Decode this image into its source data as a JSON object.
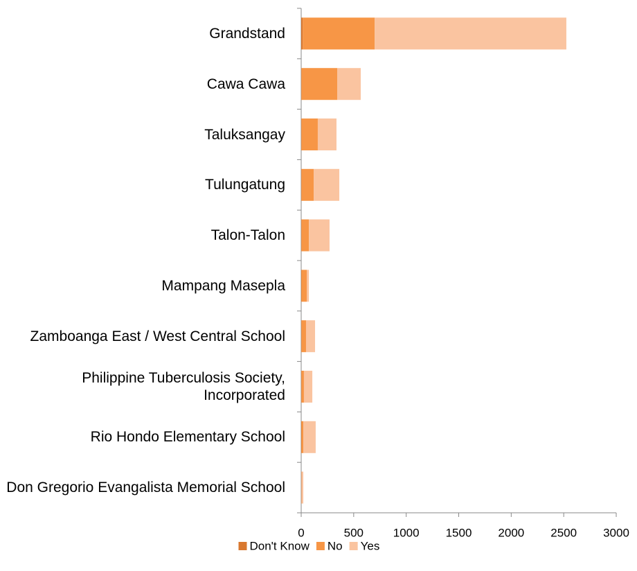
{
  "chart_data": {
    "type": "stacked_barh",
    "categories": [
      "Grandstand",
      "Cawa Cawa",
      "Taluksangay",
      "Tulungatung",
      "Talon-Talon",
      "Mampang Masepla",
      "Zamboanga East / West Central School",
      "Philippine Tuberculosis Society, Incorporated",
      "Rio Hondo Elementary School",
      "Don Gregorio Evangalista Memorial School"
    ],
    "series": [
      {
        "name": "Don't Know",
        "color": "#d9782f",
        "values": [
          15,
          5,
          5,
          5,
          5,
          3,
          5,
          5,
          3,
          2
        ]
      },
      {
        "name": "No",
        "color": "#f79646",
        "values": [
          685,
          338,
          153,
          114,
          68,
          50,
          41,
          21,
          17,
          3
        ]
      },
      {
        "name": "Yes",
        "color": "#fac4a0",
        "values": [
          1825,
          224,
          178,
          244,
          197,
          20,
          86,
          80,
          118,
          15
        ]
      }
    ],
    "xlim": [
      0,
      3000
    ],
    "xticks": [
      0,
      500,
      1000,
      1500,
      2000,
      2500,
      3000
    ],
    "legend": "bottom"
  }
}
